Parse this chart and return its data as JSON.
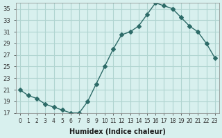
{
  "x": [
    0,
    1,
    2,
    3,
    4,
    5,
    6,
    7,
    8,
    9,
    10,
    11,
    12,
    13,
    14,
    15,
    16,
    17,
    18,
    19,
    20,
    21,
    22,
    23
  ],
  "y": [
    21,
    20,
    19.5,
    18.5,
    18,
    17.5,
    17,
    17,
    19,
    22,
    25,
    28,
    30.5,
    31,
    32,
    34,
    36,
    35.5,
    35,
    33.5,
    32,
    31,
    29,
    26.5
  ],
  "xlabel": "Humidex (Indice chaleur)",
  "ylabel": "",
  "line_color": "#2d6b68",
  "marker": "D",
  "marker_size": 3,
  "bg_color": "#d8f0ee",
  "grid_color": "#b0d4d0",
  "ylim": [
    17,
    36
  ],
  "yticks": [
    17,
    19,
    21,
    23,
    25,
    27,
    29,
    31,
    33,
    35
  ],
  "xlim": [
    -0.5,
    23.5
  ],
  "xticks": [
    0,
    1,
    2,
    3,
    4,
    5,
    6,
    7,
    8,
    9,
    10,
    11,
    12,
    13,
    14,
    15,
    16,
    17,
    18,
    19,
    20,
    21,
    22,
    23
  ]
}
